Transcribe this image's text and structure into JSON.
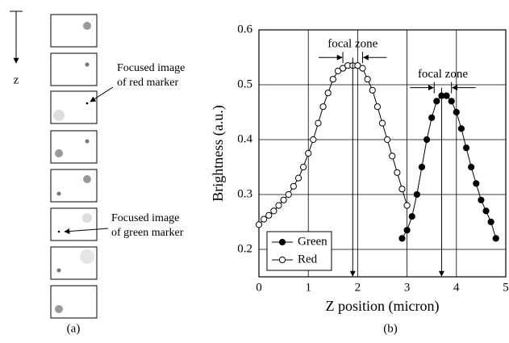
{
  "panel_a": {
    "axis_label": "z",
    "label": "(a)",
    "red_note": [
      "Focused image",
      "of red marker"
    ],
    "green_note": [
      "Focused image",
      "of green marker"
    ]
  },
  "chart_data": {
    "type": "line",
    "label": "(b)",
    "x_label": "Z position (micron)",
    "y_label": "Brightness (a.u.)",
    "xlim": [
      0,
      5
    ],
    "ylim": [
      0.15,
      0.6
    ],
    "xticks": [
      0,
      1,
      2,
      3,
      4,
      5
    ],
    "yticks": [
      0.2,
      0.3,
      0.4,
      0.5,
      0.6
    ],
    "grid": true,
    "legend": "lower left",
    "series": [
      {
        "name": "Green",
        "color": "#000000",
        "marker_fill": "#000000",
        "x": [
          2.9,
          3.0,
          3.1,
          3.2,
          3.3,
          3.4,
          3.5,
          3.6,
          3.7,
          3.8,
          3.9,
          4.0,
          4.1,
          4.2,
          4.3,
          4.4,
          4.5,
          4.6,
          4.7,
          4.8
        ],
        "values": [
          0.22,
          0.235,
          0.26,
          0.3,
          0.35,
          0.4,
          0.44,
          0.47,
          0.48,
          0.48,
          0.47,
          0.45,
          0.42,
          0.385,
          0.35,
          0.32,
          0.29,
          0.27,
          0.25,
          0.22
        ]
      },
      {
        "name": "Red",
        "color": "#000000",
        "marker_fill": "#ffffff",
        "x": [
          0,
          0.1,
          0.2,
          0.3,
          0.4,
          0.5,
          0.6,
          0.7,
          0.8,
          0.9,
          1.0,
          1.1,
          1.2,
          1.3,
          1.4,
          1.5,
          1.6,
          1.7,
          1.8,
          1.9,
          2.0,
          2.1,
          2.2,
          2.3,
          2.4,
          2.5,
          2.6,
          2.7,
          2.8,
          2.9,
          3.0
        ],
        "values": [
          0.245,
          0.255,
          0.262,
          0.27,
          0.28,
          0.29,
          0.3,
          0.315,
          0.33,
          0.35,
          0.375,
          0.4,
          0.43,
          0.46,
          0.485,
          0.51,
          0.525,
          0.53,
          0.535,
          0.535,
          0.535,
          0.53,
          0.51,
          0.49,
          0.46,
          0.43,
          0.4,
          0.37,
          0.34,
          0.31,
          0.28
        ]
      }
    ],
    "annotations": [
      {
        "text": "focal zone",
        "x": 1.9,
        "zone": [
          1.7,
          2.1
        ]
      },
      {
        "text": "focal zone",
        "x": 3.7,
        "zone": [
          3.55,
          3.9
        ]
      }
    ]
  }
}
